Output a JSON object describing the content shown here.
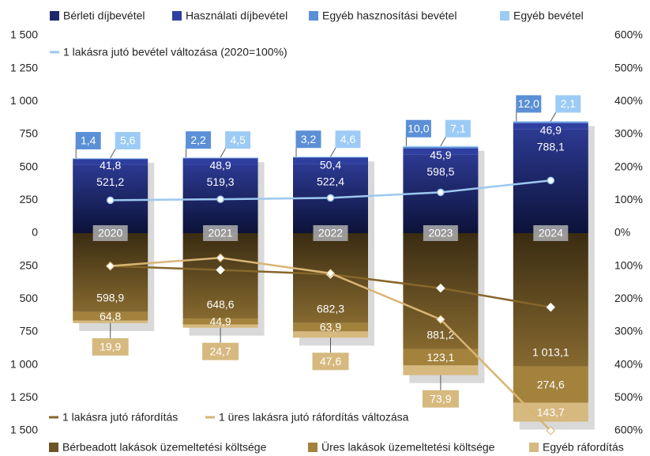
{
  "chart_data": {
    "type": "bar",
    "categories": [
      "2020",
      "2021",
      "2022",
      "2023",
      "2024"
    ],
    "ylim": [
      -1500,
      1500
    ],
    "yticks": [
      {
        "value": 1500,
        "label": "1 500"
      },
      {
        "value": 1250,
        "label": "1 250"
      },
      {
        "value": 1000,
        "label": "1 000"
      },
      750,
      500,
      250,
      0,
      {
        "value": -250,
        "label": "250"
      },
      {
        "value": -500,
        "label": "500"
      },
      {
        "value": -750,
        "label": "750"
      },
      {
        "value": -1000,
        "label": "1 000"
      },
      {
        "value": -1250,
        "label": "1 250"
      },
      {
        "value": -1500,
        "label": "1 500"
      }
    ],
    "y2lim": [
      -600,
      600
    ],
    "y2ticks": [
      {
        "value": 600,
        "label": "600%"
      },
      {
        "value": 500,
        "label": "500%"
      },
      {
        "value": 400,
        "label": "400%"
      },
      {
        "value": 300,
        "label": "300%"
      },
      {
        "value": 200,
        "label": "200%"
      },
      {
        "value": 100,
        "label": "100%"
      },
      {
        "value": 0,
        "label": "0%"
      },
      {
        "value": -100,
        "label": "100%"
      },
      {
        "value": -200,
        "label": "200%"
      },
      {
        "value": -300,
        "label": "300%"
      },
      {
        "value": -400,
        "label": "400%"
      },
      {
        "value": -500,
        "label": "500%"
      },
      {
        "value": -600,
        "label": "600%"
      }
    ],
    "series": [
      {
        "name": "Bérleti díjbevétel",
        "type": "bar",
        "color": "#1d2769",
        "values": [
          521.2,
          519.3,
          522.4,
          598.5,
          788.1
        ],
        "value_labels": [
          "521,2",
          "519,3",
          "522,4",
          "598,5",
          "788,1"
        ]
      },
      {
        "name": "Használati díjbevétel",
        "type": "bar",
        "color": "#2f3fa0",
        "values": [
          41.8,
          48.9,
          50.4,
          45.9,
          46.9
        ],
        "value_labels": [
          "41,8",
          "48,9",
          "50,4",
          "45,9",
          "46,9"
        ]
      },
      {
        "name": "Egyéb hasznosítási bevétel",
        "type": "bar",
        "color": "#5b8fd6",
        "values": [
          1.4,
          2.2,
          3.2,
          10.0,
          12.0
        ],
        "value_labels": [
          "1,4",
          "2,2",
          "3,2",
          "10,0",
          "12,0"
        ]
      },
      {
        "name": "Egyéb bevétel",
        "type": "bar",
        "color": "#9ccbf5",
        "values": [
          5.6,
          4.5,
          4.6,
          7.1,
          2.1
        ],
        "value_labels": [
          "5,6",
          "4,5",
          "4,6",
          "7,1",
          "2,1"
        ]
      },
      {
        "name": "1 lakásra jutó bevétel változása (2020=100%)",
        "type": "line",
        "axis": "y2",
        "color": "#9cc8f0",
        "values": [
          100,
          103,
          107,
          124,
          160
        ]
      },
      {
        "name": "Bérbeadott lakások üzemeltetési költsége",
        "type": "bar",
        "color": "#6b5426",
        "values": [
          -598.9,
          -648.6,
          -682.3,
          -881.2,
          -1013.1
        ],
        "value_labels": [
          "598,9",
          "648,6",
          "682,3",
          "881,2",
          "1 013,1"
        ]
      },
      {
        "name": "Üres lakások üzemeltetési költsége",
        "type": "bar",
        "color": "#a3823c",
        "values": [
          -64.8,
          -44.9,
          -63.9,
          -123.1,
          -274.6
        ],
        "value_labels": [
          "64,8",
          "44,9",
          "63,9",
          "123,1",
          "274,6"
        ]
      },
      {
        "name": "Egyéb ráfordítás",
        "type": "bar",
        "color": "#d6b97f",
        "values": [
          -19.9,
          -24.7,
          -47.6,
          -73.9,
          -143.7
        ],
        "value_labels": [
          "19,9",
          "24,7",
          "47,6",
          "73,9",
          "143,7"
        ]
      },
      {
        "name": "1 lakásra jutó ráfordítás",
        "type": "line",
        "axis": "y2",
        "color": "#86662a",
        "values": [
          -100,
          -112,
          -125,
          -167,
          -225
        ]
      },
      {
        "name": "1 üres lakásra jutó ráfordítás változása",
        "type": "line",
        "axis": "y2",
        "color": "#d8b574",
        "values": [
          -100,
          -75,
          -122,
          -262,
          -600
        ]
      }
    ]
  }
}
